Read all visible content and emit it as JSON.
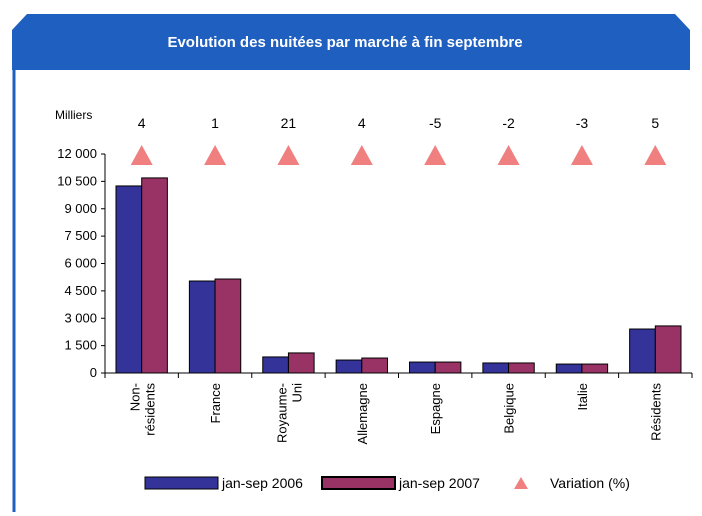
{
  "chart_data": {
    "type": "bar",
    "title": "Evolution des nuitées par marché à fin septembre",
    "y_unit_label": "Milliers",
    "categories": [
      "Non-résidents",
      "France",
      "Royaume-Uni",
      "Allemagne",
      "Espagne",
      "Belgique",
      "Italie",
      "Résidents"
    ],
    "series": [
      {
        "name": "jan-sep 2006",
        "color": "#333399",
        "values": [
          10250,
          5040,
          880,
          710,
          600,
          550,
          490,
          2410
        ]
      },
      {
        "name": "jan-sep 2007",
        "color": "#993366",
        "values": [
          10690,
          5150,
          1100,
          820,
          600,
          550,
          490,
          2580
        ]
      }
    ],
    "variation": {
      "name": "Variation (%)",
      "color": "#f08080",
      "values": [
        4,
        1,
        21,
        4,
        -5,
        -2,
        -3,
        5
      ]
    },
    "ylim": [
      0,
      12000
    ],
    "yticks": [
      0,
      {
        "value": 1500,
        "label": "1 500"
      },
      {
        "value": 3000,
        "label": "3 000"
      },
      {
        "value": 4500,
        "label": "4 500"
      },
      {
        "value": 6000,
        "label": "6 000"
      },
      {
        "value": 7500,
        "label": "7 500"
      },
      {
        "value": 9000,
        "label": "9 000"
      },
      {
        "value": 10500,
        "label": "10 500"
      },
      {
        "value": 12000,
        "label": "12 000"
      }
    ]
  }
}
